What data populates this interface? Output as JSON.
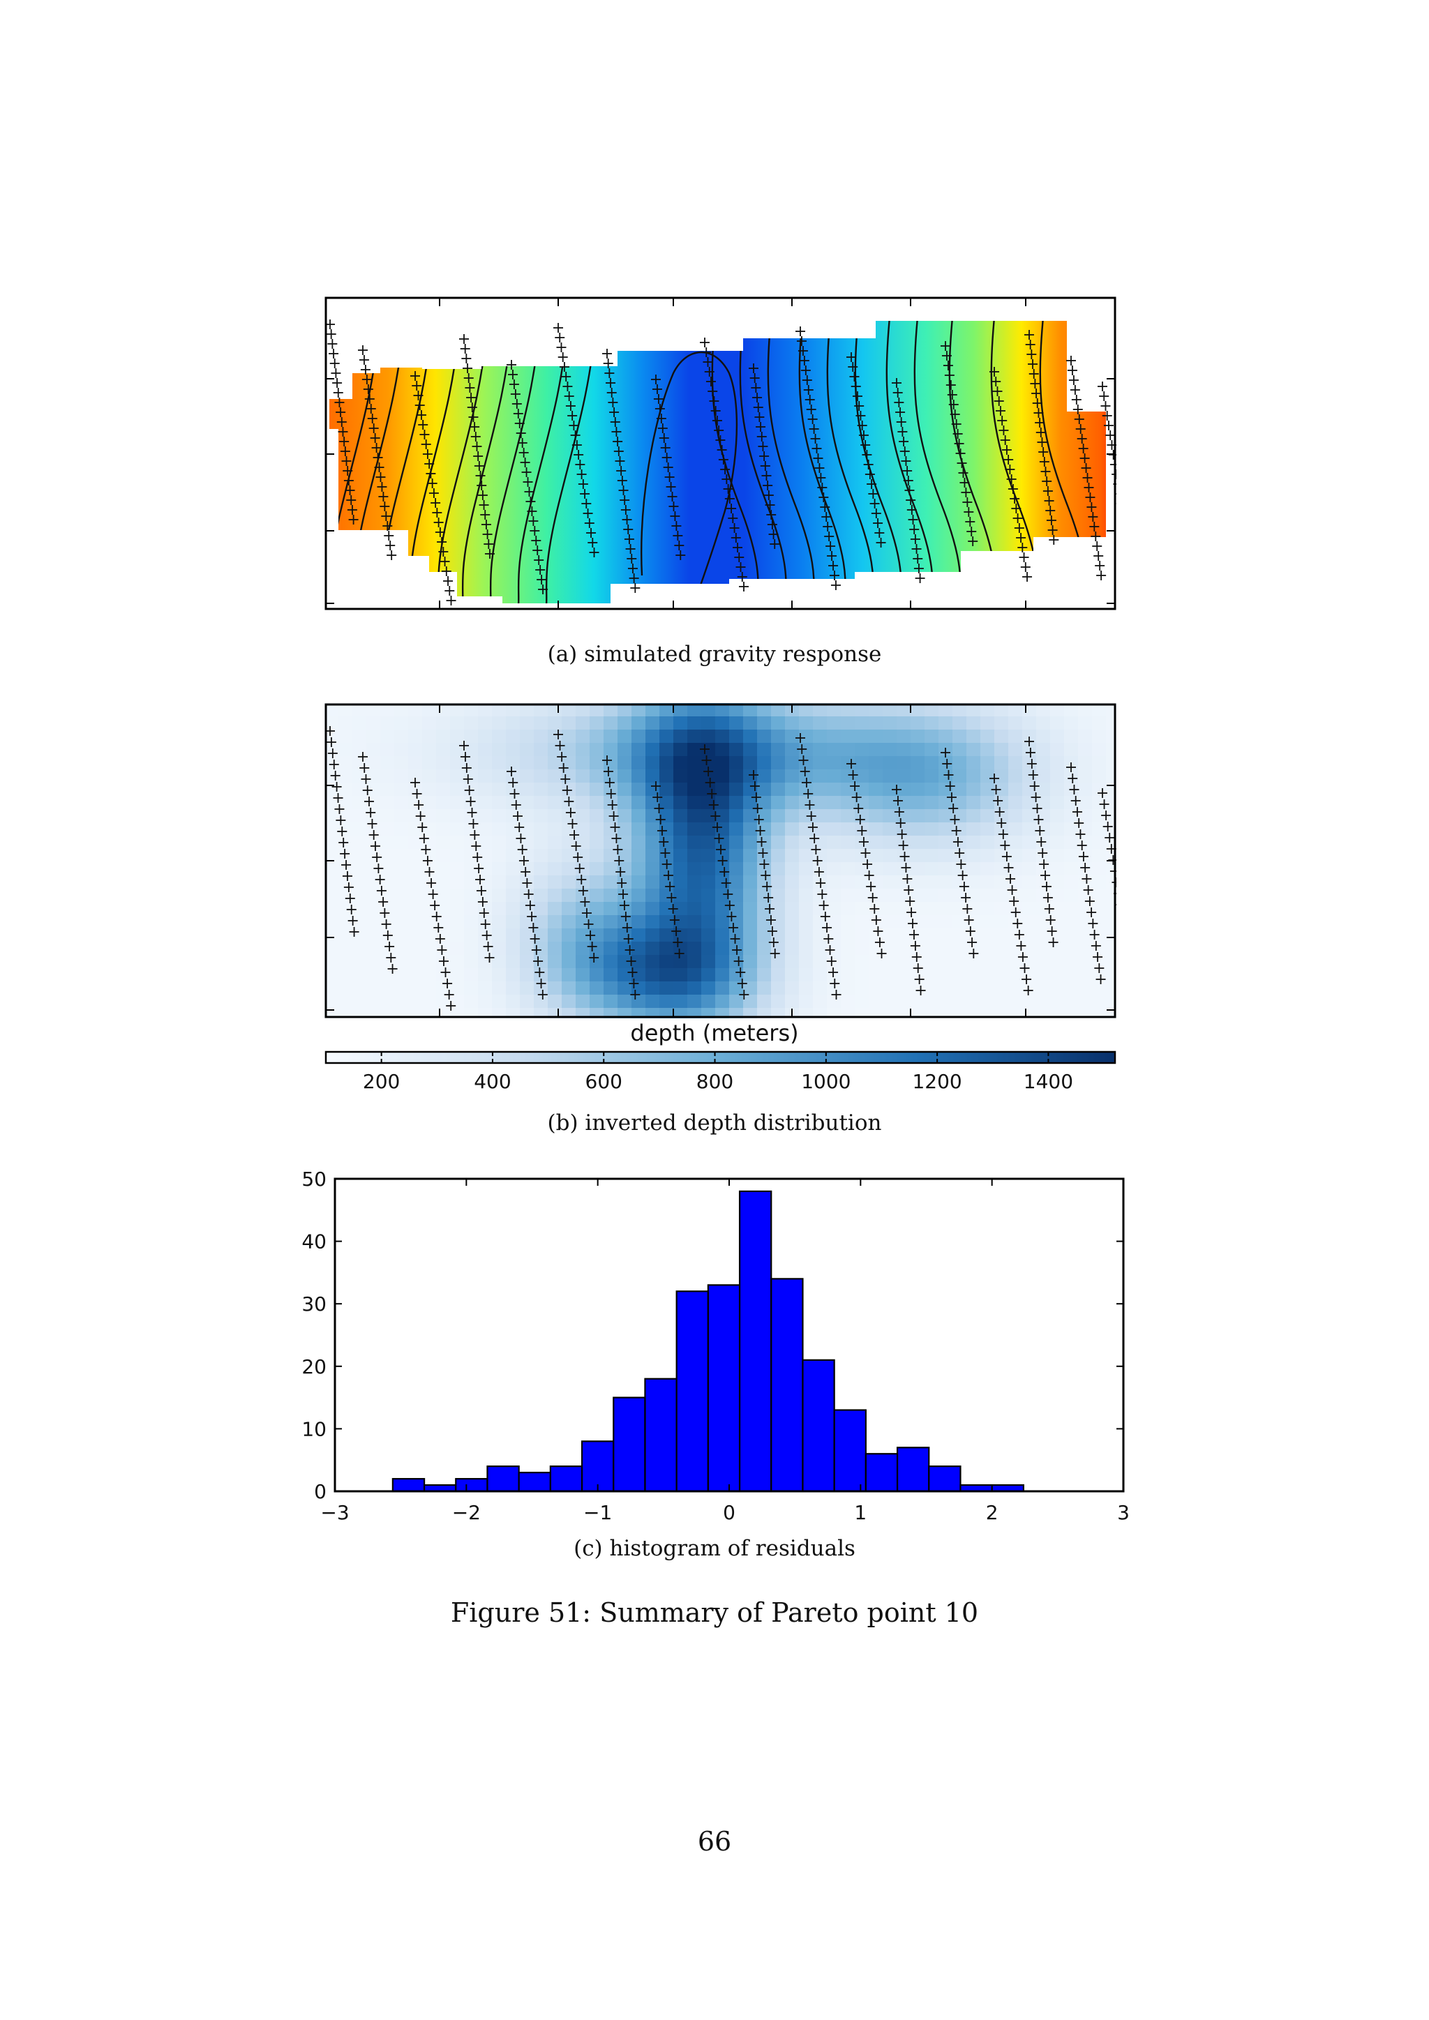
{
  "panels": {
    "a": {
      "caption": "(a) simulated gravity response"
    },
    "b": {
      "caption": "(b) inverted depth distribution",
      "colorbar": {
        "label": "depth (meters)",
        "ticks": [
          "200",
          "400",
          "600",
          "800",
          "1000",
          "1200",
          "1400"
        ],
        "tick_values": [
          200,
          400,
          600,
          800,
          1000,
          1200,
          1400
        ],
        "range": [
          100,
          1520
        ],
        "colors": [
          "#f7fbff",
          "#c6dbef",
          "#6baed6",
          "#2171b5",
          "#08306b"
        ]
      }
    },
    "c": {
      "caption": "(c) histogram of residuals"
    }
  },
  "figure_caption": "Figure 51: Summary of Pareto point 10",
  "page_number": "66",
  "chart_data": {
    "type": "bar",
    "bin_edges": [
      -2.56,
      -2.32,
      -2.08,
      -1.84,
      -1.6,
      -1.36,
      -1.12,
      -0.88,
      -0.64,
      -0.4,
      -0.16,
      0.08,
      0.32,
      0.56,
      0.8,
      1.04,
      1.28,
      1.52,
      1.76,
      2.0,
      2.24
    ],
    "values": [
      2,
      1,
      2,
      4,
      3,
      4,
      8,
      15,
      18,
      32,
      33,
      48,
      34,
      21,
      13,
      6,
      7,
      4,
      1,
      1
    ],
    "xlim": [
      -3,
      3
    ],
    "ylim": [
      0,
      50
    ],
    "xticks": [
      "−3",
      "−2",
      "−1",
      "0",
      "1",
      "2",
      "3"
    ],
    "xtick_values": [
      -3,
      -2,
      -1,
      0,
      1,
      2,
      3
    ],
    "yticks": [
      "0",
      "10",
      "20",
      "30",
      "40",
      "50"
    ],
    "ytick_values": [
      0,
      10,
      20,
      30,
      40,
      50
    ],
    "bar_color": "#0000ff",
    "grid": false,
    "xlabel": "",
    "ylabel": "",
    "title": ""
  }
}
